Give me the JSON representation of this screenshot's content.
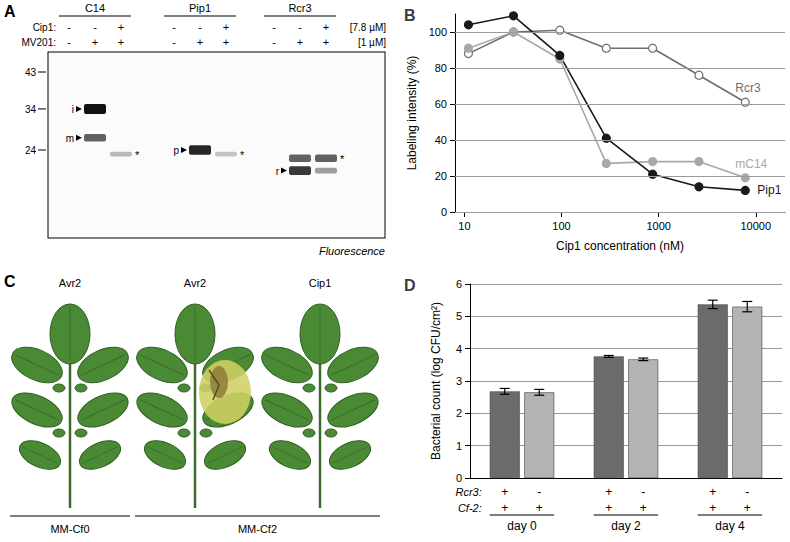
{
  "gel": {
    "title": "A",
    "groups": [
      "C14",
      "Pip1",
      "Rcr3"
    ],
    "rows": [
      {
        "label": "Cip1:",
        "signs": [
          "-",
          "-",
          "+"
        ],
        "concentration": "[7.8 µM]"
      },
      {
        "label": "MV201:",
        "signs": [
          "-",
          "+",
          "+"
        ],
        "concentration": "[1 µM]"
      }
    ],
    "markers": [
      43,
      34,
      24
    ],
    "bands": [
      {
        "group": 0,
        "lane": 1,
        "kda": 34,
        "intensity": 1,
        "label": "i"
      },
      {
        "group": 0,
        "lane": 1,
        "kda": 27,
        "intensity": 0.6,
        "label": "m"
      },
      {
        "group": 0,
        "lane": 2,
        "kda": 23,
        "intensity": 0.15,
        "label": "*"
      },
      {
        "group": 1,
        "lane": 1,
        "kda": 24,
        "intensity": 0.9,
        "label": "p"
      },
      {
        "group": 1,
        "lane": 2,
        "kda": 23,
        "intensity": 0.1,
        "label": "*"
      },
      {
        "group": 2,
        "lane": 1,
        "kda": 22,
        "intensity": 0.6
      },
      {
        "group": 2,
        "lane": 1,
        "kda": 19,
        "intensity": 0.8,
        "label": "r"
      },
      {
        "group": 2,
        "lane": 2,
        "kda": 22,
        "intensity": 0.6,
        "label": "*"
      },
      {
        "group": 2,
        "lane": 2,
        "kda": 19,
        "intensity": 0.3
      }
    ],
    "caption": "Fluorescence"
  },
  "chart_data": [
    {
      "title": "B",
      "type": "line",
      "x": [
        11,
        32,
        96,
        289,
        867,
        2600,
        7800
      ],
      "series": [
        {
          "name": "Rcr3",
          "color": "#6e6e6e",
          "marker": "circle_open",
          "values": [
            88,
            100,
            101,
            91,
            91,
            76,
            61
          ]
        },
        {
          "name": "mC14",
          "color": "#a8a8a8",
          "marker": "circle",
          "values": [
            91,
            100,
            85,
            27,
            28,
            28,
            19
          ]
        },
        {
          "name": "Pip1",
          "color": "#1a1a1a",
          "marker": "circle",
          "values": [
            104,
            109,
            87,
            41,
            21,
            14,
            12
          ]
        }
      ],
      "xlabel": "Cip1 concentration (nM)",
      "ylabel": "Labeling intensity (%)",
      "log": "x",
      "xlim": [
        8,
        20000
      ],
      "xticks": [
        10,
        100,
        1000,
        10000
      ],
      "ylim": [
        0,
        110
      ],
      "yticks": [
        0,
        20,
        40,
        60,
        80,
        100
      ],
      "grid": true
    },
    {
      "title": "D",
      "type": "bar",
      "categories": [
        "day 0",
        "day 2",
        "day 4"
      ],
      "series": [
        {
          "color": "#6b6b6b",
          "values": [
            2.68,
            3.76,
            5.37
          ],
          "errors": [
            0.09,
            0.03,
            0.13
          ],
          "signs": [
            "+",
            "+"
          ]
        },
        {
          "color": "#b3b3b3",
          "values": [
            2.65,
            3.67,
            5.3
          ],
          "errors": [
            0.09,
            0.04,
            0.16
          ],
          "signs": [
            "-",
            "+"
          ]
        }
      ],
      "row_labels": [
        "Rcr3:",
        "Cf-2:"
      ],
      "ylabel": "Bacterial count (log CFU/cm²)",
      "ylim": [
        0,
        6
      ],
      "yticks": [
        0,
        1,
        2,
        3,
        4,
        5,
        6
      ],
      "grid": true
    }
  ],
  "leaves": {
    "title": "C",
    "leaves": [
      {
        "label": "Avr2",
        "lesion": false
      },
      {
        "label": "Avr2",
        "lesion": true
      },
      {
        "label": "Cip1",
        "lesion": false
      }
    ],
    "genotypes": [
      {
        "label": "MM-Cf0",
        "leaves": [
          0
        ]
      },
      {
        "label": "MM-Cf2",
        "leaves": [
          1,
          2
        ]
      }
    ]
  }
}
